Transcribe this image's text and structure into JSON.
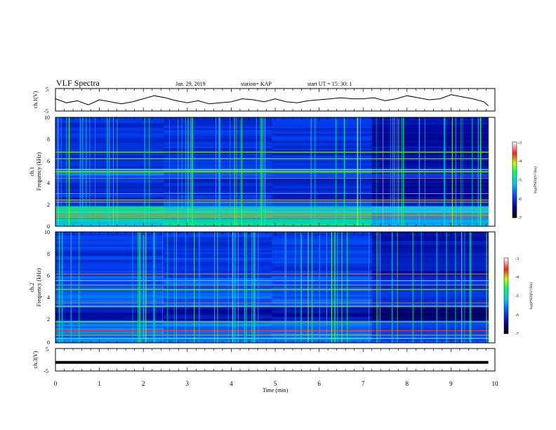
{
  "header": {
    "title": "VLF Spectra",
    "date": "Jan. 29, 2019",
    "station": "station= KAP",
    "start": "start  UT =   15: 30: 1"
  },
  "chart_data": [
    {
      "type": "line",
      "name": "ch1-waveform",
      "ylabel": "ch.1(V)",
      "ylim": [
        -5,
        5
      ],
      "yticks": [
        "5",
        "-5"
      ],
      "xlim": [
        0,
        10
      ],
      "x": [
        0,
        0.25,
        0.5,
        0.75,
        1,
        1.25,
        1.5,
        1.75,
        2,
        2.25,
        2.5,
        2.75,
        3,
        3.25,
        3.5,
        3.75,
        4,
        4.25,
        4.5,
        4.75,
        5,
        5.25,
        5.5,
        5.75,
        6,
        6.25,
        6.5,
        6.75,
        7,
        7.25,
        7.5,
        7.75,
        8,
        8.25,
        8.5,
        8.75,
        9,
        9.25,
        9.5,
        9.75,
        9.85
      ],
      "values": [
        0.5,
        -1.5,
        -0.5,
        -2.5,
        0,
        -1,
        -2,
        -1,
        0.5,
        2,
        1,
        -0.5,
        -1.5,
        -0.5,
        -2,
        -1.5,
        -1,
        0.5,
        0,
        -1,
        0.5,
        -1,
        -1.5,
        -0.5,
        0,
        0.5,
        1,
        0.5,
        0.5,
        1,
        -0.5,
        0.5,
        2,
        1,
        0,
        0.5,
        2.5,
        1.5,
        0.5,
        -1,
        -3
      ]
    },
    {
      "type": "heatmap",
      "name": "ch1-spectrogram",
      "ylabel_line1": "ch.1",
      "ylabel_line2": "Frequency (kHz)",
      "ylim": [
        0,
        10
      ],
      "yticks": [
        "0",
        "2",
        "4",
        "6",
        "8",
        "10"
      ],
      "xlim": [
        0,
        9.85
      ],
      "note_change_at_min": 7.2,
      "colorbar": {
        "label": "log(PSD)(V²/Hz)",
        "range": [
          -7,
          -3
        ],
        "ticks": [
          "-3",
          "-4",
          "-5",
          "-6",
          "-7"
        ]
      }
    },
    {
      "type": "heatmap",
      "name": "ch2-spectrogram",
      "ylabel_line1": "ch.2",
      "ylabel_line2": "Frequency (kHz)",
      "ylim": [
        0,
        10
      ],
      "yticks": [
        "0",
        "2",
        "4",
        "6",
        "8",
        "10"
      ],
      "xlim": [
        0,
        9.85
      ],
      "note_change_at_min": 7.2,
      "colorbar": {
        "label": "log(PSD)(V²/Hz)",
        "range": [
          -7,
          -3
        ],
        "ticks": [
          "-3",
          "-4",
          "-5",
          "-6",
          "-7"
        ]
      }
    },
    {
      "type": "line",
      "name": "ch3-waveform",
      "ylabel": "ch.3(V)",
      "ylim": [
        -5,
        5
      ],
      "yticks": [
        "5",
        "-5"
      ],
      "xlim": [
        0,
        10
      ],
      "x": [
        0,
        9.85
      ],
      "values": [
        -1.3,
        -1.3
      ]
    }
  ],
  "xaxis": {
    "label": "Time (min)",
    "ticks": [
      "0",
      "1",
      "2",
      "3",
      "4",
      "5",
      "6",
      "7",
      "8",
      "9",
      "10"
    ]
  },
  "colors": {
    "spectrum_low": "#000080",
    "spectrum_mid": "#00ff80",
    "spectrum_high": "#ff0000"
  }
}
